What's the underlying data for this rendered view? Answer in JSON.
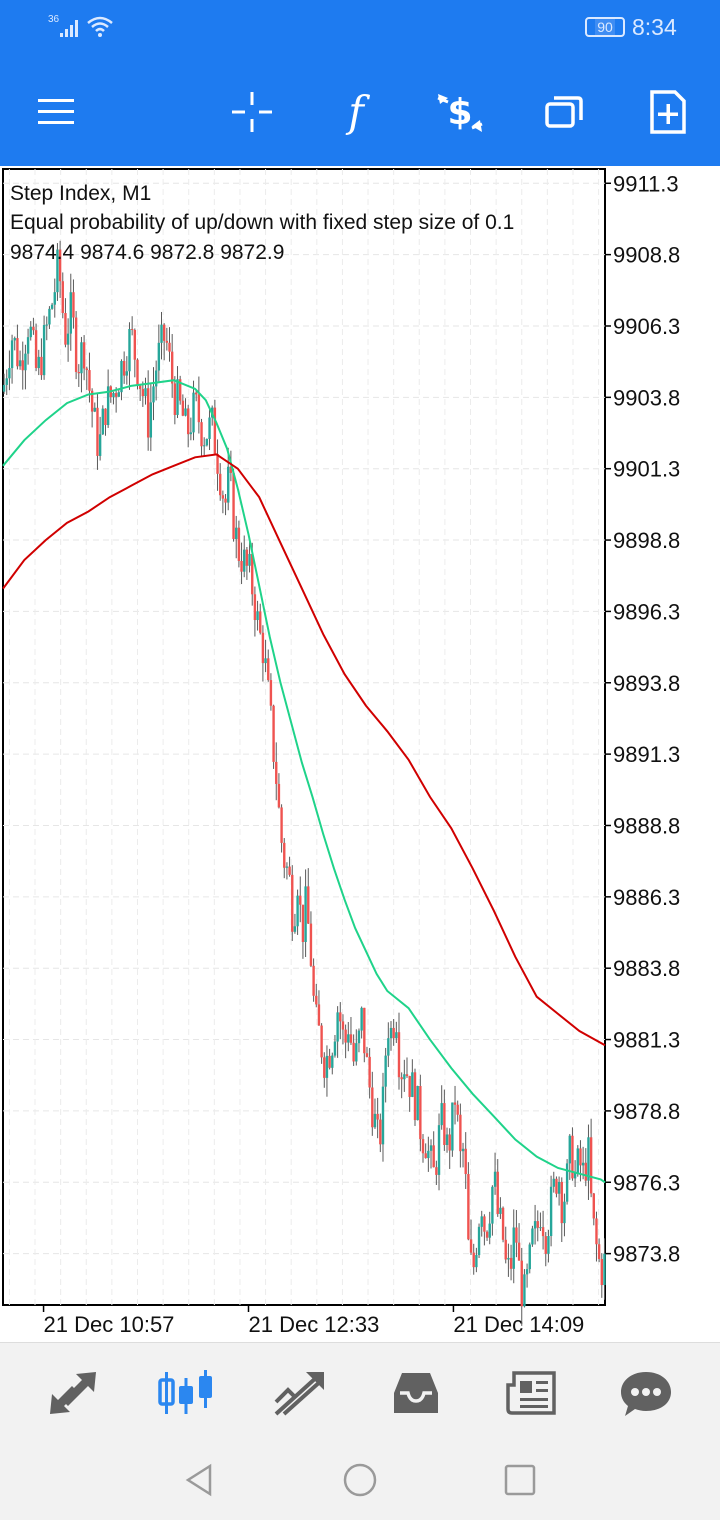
{
  "status_bar": {
    "signal_label": "36",
    "battery": "90",
    "time": "8:34"
  },
  "toolbar": {
    "icons": [
      "menu-icon",
      "crosshair-icon",
      "indicators-icon",
      "trade-icon",
      "windows-icon",
      "new-order-icon"
    ]
  },
  "chart_info": {
    "symbol_line": "Step Index, M1",
    "description": "Equal probability of up/down with fixed step size of 0.1",
    "ohlc": "9874.4 9874.6 9872.8 9872.9"
  },
  "colors": {
    "accent": "#1e7bf0",
    "bull": "#26a69a",
    "bear": "#ef5350",
    "ma_fast": "#1fd38a",
    "ma_slow": "#d00000"
  },
  "chart_data": {
    "type": "candlestick",
    "title": "Step Index, M1",
    "y_ticks": [
      "9911.3",
      "9908.8",
      "9906.3",
      "9903.8",
      "9901.3",
      "9898.8",
      "9896.3",
      "9893.8",
      "9891.3",
      "9888.8",
      "9886.3",
      "9883.8",
      "9881.3",
      "9878.8",
      "9876.3",
      "9873.8"
    ],
    "x_ticks": [
      "21 Dec 10:57",
      "21 Dec 12:33",
      "21 Dec 14:09"
    ],
    "ylim": [
      9872.0,
      9911.8
    ],
    "x_range_minutes": [
      0,
      282
    ],
    "x_tick_minutes": [
      19,
      115,
      211
    ],
    "price_path": [
      [
        0,
        9904
      ],
      [
        4,
        9906
      ],
      [
        8,
        9905
      ],
      [
        12,
        9906.5
      ],
      [
        16,
        9904.5
      ],
      [
        20,
        9906
      ],
      [
        24,
        9907.5
      ],
      [
        26,
        9908.5
      ],
      [
        29,
        9906
      ],
      [
        32,
        9906.8
      ],
      [
        35,
        9905
      ],
      [
        38,
        9905.6
      ],
      [
        42,
        9903.2
      ],
      [
        45,
        9902
      ],
      [
        48,
        9903.5
      ],
      [
        52,
        9904
      ],
      [
        56,
        9905
      ],
      [
        60,
        9906
      ],
      [
        64,
        9904.5
      ],
      [
        68,
        9903
      ],
      [
        72,
        9905
      ],
      [
        76,
        9906
      ],
      [
        80,
        9904
      ],
      [
        84,
        9903.2
      ],
      [
        86,
        9902.5
      ],
      [
        90,
        9903.5
      ],
      [
        94,
        9902.5
      ],
      [
        98,
        9902.8
      ],
      [
        101,
        9901.5
      ],
      [
        104,
        9900
      ],
      [
        106,
        9901
      ],
      [
        108,
        9899.5
      ],
      [
        110,
        9898.5
      ],
      [
        112,
        9898.2
      ],
      [
        114,
        9897.8
      ],
      [
        116,
        9897.5
      ],
      [
        118,
        9896.6
      ],
      [
        120,
        9895.5
      ],
      [
        122,
        9895
      ],
      [
        124,
        9893.5
      ],
      [
        126,
        9892
      ],
      [
        128,
        9890.5
      ],
      [
        130,
        9888.5
      ],
      [
        132,
        9887.5
      ],
      [
        134,
        9887
      ],
      [
        136,
        9885.5
      ],
      [
        138,
        9887
      ],
      [
        140,
        9885
      ],
      [
        142,
        9886
      ],
      [
        144,
        9884.5
      ],
      [
        146,
        9882
      ],
      [
        148,
        9881.5
      ],
      [
        151,
        9880.5
      ],
      [
        154,
        9881.2
      ],
      [
        157,
        9882.5
      ],
      [
        160,
        9881
      ],
      [
        162,
        9882
      ],
      [
        164,
        9880.5
      ],
      [
        166,
        9880.8
      ],
      [
        168,
        9882
      ],
      [
        171,
        9880
      ],
      [
        174,
        9878.5
      ],
      [
        176,
        9877.5
      ],
      [
        178,
        9879
      ],
      [
        180,
        9882
      ],
      [
        182,
        9881.5
      ],
      [
        184,
        9882.5
      ],
      [
        186,
        9880.2
      ],
      [
        188,
        9880.5
      ],
      [
        190,
        9880
      ],
      [
        192,
        9879.5
      ],
      [
        194,
        9879
      ],
      [
        196,
        9878
      ],
      [
        198,
        9877.8
      ],
      [
        200,
        9877
      ],
      [
        202,
        9876.5
      ],
      [
        204,
        9877.8
      ],
      [
        206,
        9878.5
      ],
      [
        208,
        9877.5
      ],
      [
        210,
        9878
      ],
      [
        212,
        9879.5
      ],
      [
        214,
        9877
      ],
      [
        216,
        9877.5
      ],
      [
        218,
        9874
      ],
      [
        220,
        9873
      ],
      [
        222,
        9874.5
      ],
      [
        224,
        9875.8
      ],
      [
        226,
        9874.5
      ],
      [
        228,
        9875.5
      ],
      [
        230,
        9876.5
      ],
      [
        232,
        9875
      ],
      [
        234,
        9874.5
      ],
      [
        236,
        9873
      ],
      [
        238,
        9873.5
      ],
      [
        240,
        9874.8
      ],
      [
        242,
        9873
      ],
      [
        244,
        9872.2
      ],
      [
        246,
        9873
      ],
      [
        248,
        9874.2
      ],
      [
        250,
        9874.5
      ],
      [
        252,
        9875.5
      ],
      [
        254,
        9874.5
      ],
      [
        256,
        9875.2
      ],
      [
        258,
        9876
      ],
      [
        260,
        9876.8
      ],
      [
        262,
        9875.5
      ],
      [
        264,
        9876.2
      ],
      [
        266,
        9877.5
      ],
      [
        268,
        9876.5
      ],
      [
        270,
        9877
      ],
      [
        272,
        9876.5
      ],
      [
        274,
        9877.5
      ],
      [
        276,
        9875
      ],
      [
        278,
        9874
      ],
      [
        280,
        9873.2
      ],
      [
        282,
        9873.5
      ]
    ],
    "series": [
      {
        "type": "line",
        "points": [
          [
            0,
            9901.4
          ],
          [
            10,
            9902.3
          ],
          [
            20,
            9903
          ],
          [
            30,
            9903.6
          ],
          [
            40,
            9903.9
          ],
          [
            50,
            9904.0
          ],
          [
            60,
            9904.2
          ],
          [
            70,
            9904.3
          ],
          [
            80,
            9904.4
          ],
          [
            90,
            9904.1
          ],
          [
            95,
            9903.7
          ],
          [
            100,
            9902.9
          ],
          [
            105,
            9902.0
          ],
          [
            110,
            9900.6
          ],
          [
            115,
            9899.0
          ],
          [
            120,
            9897.2
          ],
          [
            125,
            9895.4
          ],
          [
            130,
            9893.8
          ],
          [
            135,
            9892.4
          ],
          [
            140,
            9891.0
          ],
          [
            145,
            9889.8
          ],
          [
            150,
            9888.5
          ],
          [
            155,
            9887.3
          ],
          [
            160,
            9886.2
          ],
          [
            165,
            9885.2
          ],
          [
            170,
            9884.4
          ],
          [
            175,
            9883.6
          ],
          [
            180,
            9883.0
          ],
          [
            190,
            9882.4
          ],
          [
            200,
            9881.3
          ],
          [
            210,
            9880.3
          ],
          [
            220,
            9879.4
          ],
          [
            230,
            9878.6
          ],
          [
            240,
            9877.8
          ],
          [
            250,
            9877.2
          ],
          [
            260,
            9876.8
          ],
          [
            270,
            9876.6
          ],
          [
            280,
            9876.4
          ],
          [
            282,
            9876.3
          ]
        ]
      },
      {
        "type": "line",
        "points": [
          [
            0,
            9897.1
          ],
          [
            10,
            9898.1
          ],
          [
            20,
            9898.8
          ],
          [
            30,
            9899.4
          ],
          [
            40,
            9899.8
          ],
          [
            50,
            9900.3
          ],
          [
            60,
            9900.7
          ],
          [
            70,
            9901.1
          ],
          [
            80,
            9901.4
          ],
          [
            90,
            9901.7
          ],
          [
            100,
            9901.8
          ],
          [
            110,
            9901.3
          ],
          [
            120,
            9900.3
          ],
          [
            130,
            9898.7
          ],
          [
            140,
            9897.1
          ],
          [
            150,
            9895.5
          ],
          [
            160,
            9894.1
          ],
          [
            170,
            9893.0
          ],
          [
            180,
            9892.1
          ],
          [
            190,
            9891.1
          ],
          [
            200,
            9889.8
          ],
          [
            210,
            9888.7
          ],
          [
            220,
            9887.3
          ],
          [
            230,
            9885.8
          ],
          [
            240,
            9884.2
          ],
          [
            250,
            9882.8
          ],
          [
            260,
            9882.2
          ],
          [
            270,
            9881.6
          ],
          [
            282,
            9881.1
          ]
        ]
      }
    ]
  },
  "bottom_nav": {
    "items": [
      "quotes-icon",
      "chart-icon",
      "trade-icon",
      "history-icon",
      "news-icon",
      "chat-icon"
    ]
  },
  "system_nav": {
    "items": [
      "back-icon",
      "home-icon",
      "recents-icon"
    ]
  }
}
